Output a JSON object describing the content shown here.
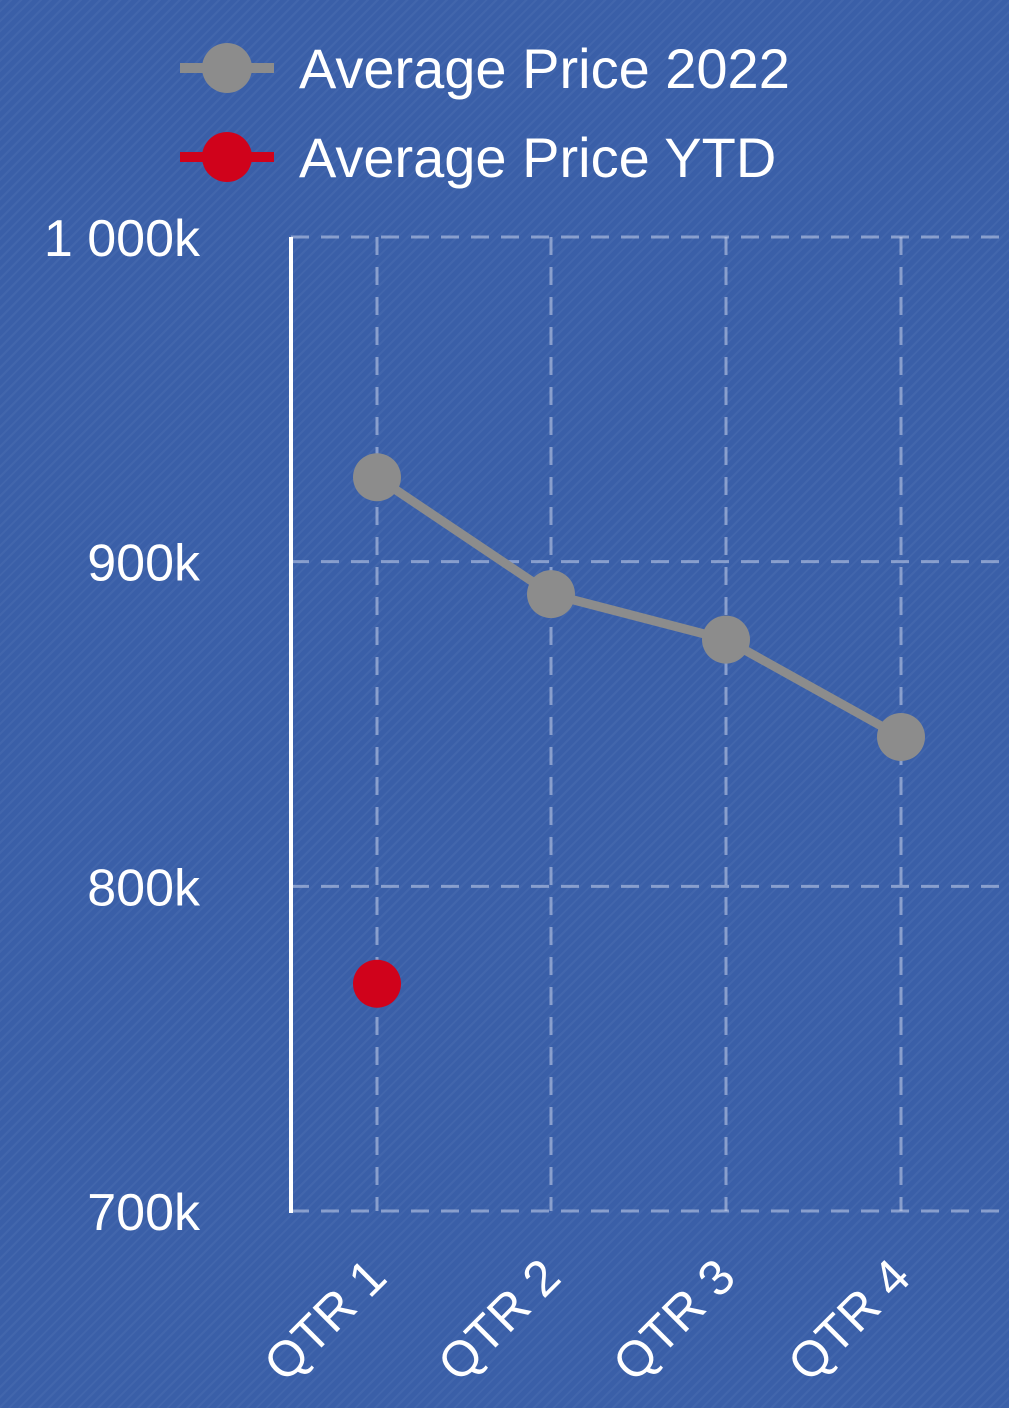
{
  "chart_data": {
    "type": "line",
    "categories": [
      "QTR 1",
      "QTR 2",
      "QTR 3",
      "QTR 4"
    ],
    "series": [
      {
        "name": "Average Price 2022",
        "values": [
          926,
          890,
          876,
          846
        ],
        "color": "#8c8c8c"
      },
      {
        "name": "Average Price YTD",
        "values": [
          770,
          null,
          null,
          null
        ],
        "color": "#d0021b"
      }
    ],
    "y_ticks": [
      {
        "value": 700,
        "label": "700k"
      },
      {
        "value": 800,
        "label": "800k"
      },
      {
        "value": 900,
        "label": "900k"
      },
      {
        "value": 1000,
        "label": "1 000k"
      }
    ],
    "ylim": [
      700,
      1000
    ],
    "grid": true,
    "grid_style": "dashed",
    "legend_position": "top",
    "title": "",
    "xlabel": "",
    "ylabel": "",
    "background_color": "#3a5fa8"
  }
}
